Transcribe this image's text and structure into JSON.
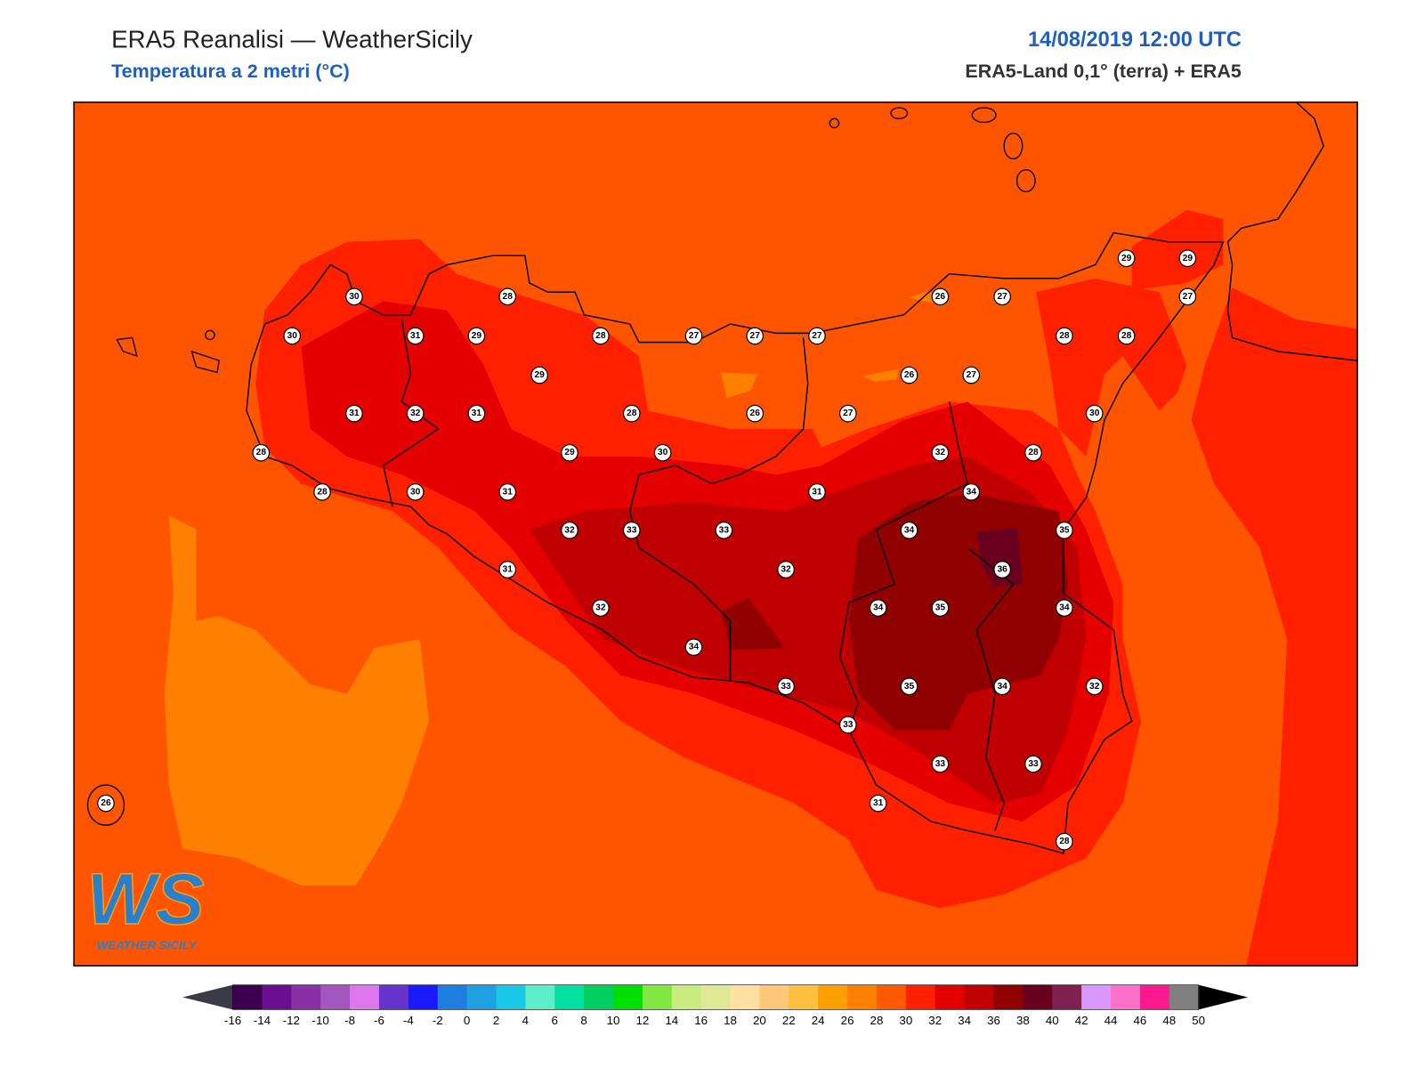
{
  "header": {
    "title": "ERA5 Reanalisi — WeatherSicily",
    "subtitle": "Temperatura a 2 metri (°C)",
    "datetime": "14/08/2019 12:00 UTC",
    "source": "ERA5-Land 0,1° (terra) + ERA5"
  },
  "map": {
    "stations": [
      30,
      28,
      30,
      31,
      29,
      28,
      27,
      27,
      27,
      26,
      27,
      29,
      29,
      27,
      28,
      28,
      29,
      26,
      27,
      31,
      32,
      31,
      28,
      26,
      27,
      30,
      28,
      29,
      30,
      32,
      28,
      28,
      30,
      31,
      31,
      34,
      32,
      33,
      33,
      34,
      35,
      31,
      32,
      36,
      32,
      34,
      35,
      34,
      34,
      33,
      35,
      34,
      32,
      33,
      33,
      33,
      31,
      28,
      26
    ]
  },
  "colorbar": {
    "ticks": [
      -16,
      -14,
      -12,
      -10,
      -8,
      -6,
      -4,
      -2,
      0,
      2,
      4,
      6,
      8,
      10,
      12,
      14,
      16,
      18,
      20,
      22,
      24,
      26,
      28,
      30,
      32,
      34,
      36,
      38,
      40,
      42,
      44,
      46,
      48,
      50
    ],
    "colors": [
      "#3d0050",
      "#6a0f8f",
      "#8b2fa5",
      "#a355c0",
      "#dd77ee",
      "#6633cc",
      "#1a1aff",
      "#1e7fe0",
      "#1fa0e0",
      "#19c8e6",
      "#5eeecc",
      "#00e0a0",
      "#00d060",
      "#00e000",
      "#80e840",
      "#c8ec80",
      "#e0e898",
      "#ffe0a0",
      "#ffc878",
      "#ffc040",
      "#ffa000",
      "#ff8000",
      "#ff5a00",
      "#ff2000",
      "#e50000",
      "#c00000",
      "#900000",
      "#6a0020",
      "#7e2050",
      "#d898ff",
      "#ff70c8",
      "#ff1890",
      "#808080"
    ],
    "under_color": "#3a3a48",
    "over_color": "#000000"
  },
  "logo": {
    "mark": "WS",
    "text": "WEATHER SICILY"
  }
}
